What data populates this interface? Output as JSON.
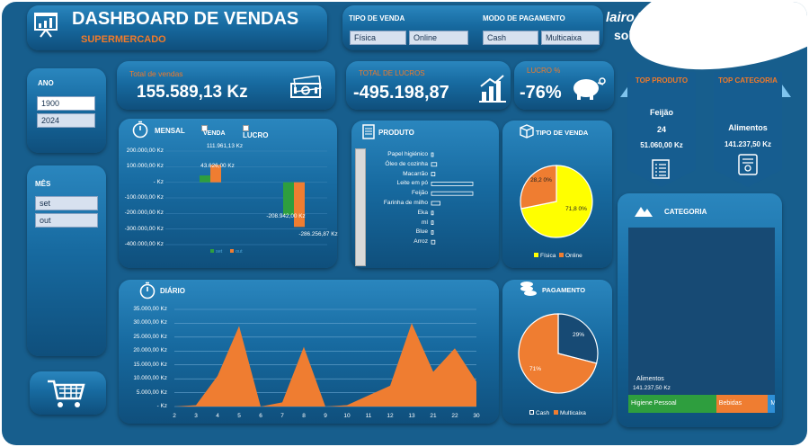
{
  "header": {
    "title": "DASHBOARD DE VENDAS",
    "subtitle": "SUPERMERCADO",
    "icon": "presentation-icon"
  },
  "filters": {
    "tipo_label": "TIPO DE VENDA",
    "tipo_options": [
      "Física",
      "Online"
    ],
    "modo_label": "MODO DE PAGAMENTO",
    "modo_options": [
      "Cash",
      "Multicaixa"
    ]
  },
  "brand": {
    "name": "lairoAbiúd",
    "sub": "solutions"
  },
  "ano": {
    "label": "ANO",
    "items": [
      "1900",
      "2024"
    ]
  },
  "mes": {
    "label": "MÊS",
    "items": [
      "set",
      "out"
    ]
  },
  "kpis": {
    "vendas_label": "Total de vendas",
    "vendas_value": "155.589,13 Kz",
    "lucros_label": "TOTAL DE LUCROS",
    "lucros_value": "-495.198,87",
    "lucro_pct_label": "LUCRO %",
    "lucro_pct_value": "-76%"
  },
  "top_produto": {
    "label": "TOP PRODUTO",
    "name": "Feijão",
    "qty": "24",
    "value": "51.060,00 Kz"
  },
  "top_categoria": {
    "label": "TOP CATEGORIA",
    "name": "Alimentos",
    "value": "141.237,50 Kz"
  },
  "colors": {
    "green": "#2e9e3e",
    "orange": "#ef7d31",
    "yellow": "#ffff00",
    "navy": "#174a74"
  },
  "chart_data": [
    {
      "id": "mensal",
      "type": "bar",
      "title": "MENSAL",
      "toggles": [
        "VENDA",
        "LUCRO"
      ],
      "categories": [
        "set",
        "out"
      ],
      "series": [
        {
          "name": "VENDA",
          "values": [
            43626,
            111961.13
          ]
        },
        {
          "name": "LUCRO",
          "values": [
            -208942,
            -286256.87
          ]
        }
      ],
      "data_labels": [
        "111.961,13 Kz",
        "43.626,00 Kz",
        "-208.942,00 Kz",
        "-286.256,87 Kz"
      ],
      "yticks": [
        "200.000,00 Kz",
        "100.000,00 Kz",
        "- Kz",
        "-100.000,00 Kz",
        "-200.000,00 Kz",
        "-300.000,00 Kz",
        "-400.000,00 Kz"
      ],
      "ylim": [
        -400000,
        200000
      ],
      "legend": [
        "set",
        "out"
      ]
    },
    {
      "id": "produto",
      "type": "bar",
      "title": "PRODUTO",
      "orientation": "horizontal",
      "categories": [
        "Papel higiénico",
        "Óleo de cozinha",
        "Macarrão",
        "Leite em pó",
        "Feijão",
        "Farinha de milho",
        "Eka",
        "ml",
        "Blue",
        "Arroz"
      ],
      "values": [
        1,
        3,
        2,
        24,
        24,
        5,
        1,
        1,
        1,
        2
      ]
    },
    {
      "id": "tipo_venda",
      "type": "pie",
      "title": "TIPO DE VENDA",
      "labels": [
        "Física",
        "Online"
      ],
      "values": [
        71.8,
        28.2
      ],
      "data_labels": [
        "71,8 0%",
        "28,2 0%"
      ]
    },
    {
      "id": "diario",
      "type": "area",
      "title": "DIÁRIO",
      "x": [
        "2",
        "3",
        "4",
        "5",
        "6",
        "7",
        "8",
        "9",
        "10",
        "11",
        "12",
        "13",
        "21",
        "22",
        "30"
      ],
      "values": [
        0,
        500,
        11000,
        29000,
        0,
        1500,
        21500,
        0,
        500,
        4000,
        7500,
        30000,
        12500,
        21000,
        9000
      ],
      "yticks": [
        "35.000,00 Kz",
        "30.000,00 Kz",
        "25.000,00 Kz",
        "20.000,00 Kz",
        "15.000,00 Kz",
        "10.000,00 Kz",
        "5.000,00 Kz",
        "- Kz"
      ],
      "ylim": [
        0,
        35000
      ]
    },
    {
      "id": "pagamento",
      "type": "pie",
      "title": "PAGAMENTO",
      "labels": [
        "Cash",
        "Multicaixa"
      ],
      "values": [
        29,
        71
      ],
      "data_labels": [
        "29%",
        "71%"
      ]
    },
    {
      "id": "categoria",
      "type": "treemap",
      "title": "CATEGORIA",
      "labels": [
        "Higiene Pessoal",
        "Bebidas",
        "M.."
      ],
      "values": [
        51,
        30,
        4
      ],
      "annotation_name": "Alimentos",
      "annotation_value": "141.237,50 Kz"
    }
  ]
}
